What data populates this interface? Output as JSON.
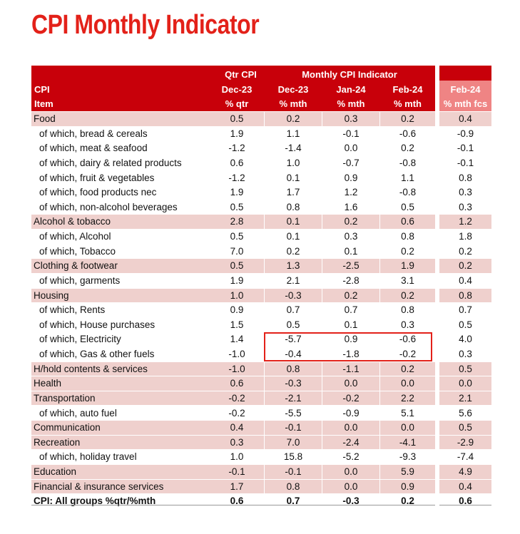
{
  "title": "CPI Monthly Indicator",
  "header": {
    "qtr_cpi": "Qtr CPI",
    "monthly_cpi_indicator": "Monthly CPI Indicator",
    "cpi": "CPI",
    "item": "Item",
    "col_dec23_qtr": "Dec-23",
    "col_qtr_unit": "% qtr",
    "col_dec23": "Dec-23",
    "col_jan24": "Jan-24",
    "col_feb24": "Feb-24",
    "col_mth_unit": "% mth",
    "col_feb24_fcs": "Feb-24",
    "col_fcs_unit": "% mth fcs"
  },
  "chart_data": {
    "type": "table",
    "title": "CPI Monthly Indicator",
    "columns": [
      "Qtr CPI Dec-23 % qtr",
      "Dec-23 % mth",
      "Jan-24 % mth",
      "Feb-24 % mth",
      "Feb-24 % mth fcs"
    ],
    "rows": [
      {
        "label": "Food",
        "values": [
          "0.5",
          "0.2",
          "0.3",
          "0.2",
          "0.4"
        ]
      },
      {
        "label": "of which, bread & cereals",
        "values": [
          "1.9",
          "1.1",
          "-0.1",
          "-0.6",
          "-0.9"
        ]
      },
      {
        "label": "of which, meat & seafood",
        "values": [
          "-1.2",
          "-1.4",
          "0.0",
          "0.2",
          "-0.1"
        ]
      },
      {
        "label": "of which, dairy & related products",
        "values": [
          "0.6",
          "1.0",
          "-0.7",
          "-0.8",
          "-0.1"
        ]
      },
      {
        "label": "of which, fruit & vegetables",
        "values": [
          "-1.2",
          "0.1",
          "0.9",
          "1.1",
          "0.8"
        ]
      },
      {
        "label": "of which, food products nec",
        "values": [
          "1.9",
          "1.7",
          "1.2",
          "-0.8",
          "0.3"
        ]
      },
      {
        "label": "of which, non-alcohol beverages",
        "values": [
          "0.5",
          "0.8",
          "1.6",
          "0.5",
          "0.3"
        ]
      },
      {
        "label": "Alcohol & tobacco",
        "values": [
          "2.8",
          "0.1",
          "0.2",
          "0.6",
          "1.2"
        ]
      },
      {
        "label": "of which, Alcohol",
        "values": [
          "0.5",
          "0.1",
          "0.3",
          "0.8",
          "1.8"
        ]
      },
      {
        "label": "of which, Tobacco",
        "values": [
          "7.0",
          "0.2",
          "0.1",
          "0.2",
          "0.2"
        ]
      },
      {
        "label": "Clothing & footwear",
        "values": [
          "0.5",
          "1.3",
          "-2.5",
          "1.9",
          "0.2"
        ]
      },
      {
        "label": "of which, garments",
        "values": [
          "1.9",
          "2.1",
          "-2.8",
          "3.1",
          "0.4"
        ]
      },
      {
        "label": "Housing",
        "values": [
          "1.0",
          "-0.3",
          "0.2",
          "0.2",
          "0.8"
        ]
      },
      {
        "label": "of which, Rents",
        "values": [
          "0.9",
          "0.7",
          "0.7",
          "0.8",
          "0.7"
        ]
      },
      {
        "label": "of which, House purchases",
        "values": [
          "1.5",
          "0.5",
          "0.1",
          "0.3",
          "0.5"
        ]
      },
      {
        "label": "of which, Electricity",
        "values": [
          "1.4",
          "-5.7",
          "0.9",
          "-0.6",
          "4.0"
        ]
      },
      {
        "label": "of which, Gas & other fuels",
        "values": [
          "-1.0",
          "-0.4",
          "-1.8",
          "-0.2",
          "0.3"
        ]
      },
      {
        "label": "H/hold contents & services",
        "values": [
          "-1.0",
          "0.8",
          "-1.1",
          "0.2",
          "0.5"
        ]
      },
      {
        "label": "Health",
        "values": [
          "0.6",
          "-0.3",
          "0.0",
          "0.0",
          "0.0"
        ]
      },
      {
        "label": "Transportation",
        "values": [
          "-0.2",
          "-2.1",
          "-0.2",
          "2.2",
          "2.1"
        ]
      },
      {
        "label": "of which, auto fuel",
        "values": [
          "-0.2",
          "-5.5",
          "-0.9",
          "5.1",
          "5.6"
        ]
      },
      {
        "label": "Communication",
        "values": [
          "0.4",
          "-0.1",
          "0.0",
          "0.0",
          "0.5"
        ]
      },
      {
        "label": "Recreation",
        "values": [
          "0.3",
          "7.0",
          "-2.4",
          "-4.1",
          "-2.9"
        ]
      },
      {
        "label": "of which, holiday travel",
        "values": [
          "1.0",
          "15.8",
          "-5.2",
          "-9.3",
          "-7.4"
        ]
      },
      {
        "label": "Education",
        "values": [
          "-0.1",
          "-0.1",
          "0.0",
          "5.9",
          "4.9"
        ]
      },
      {
        "label": "Financial & insurance services",
        "values": [
          "1.7",
          "0.8",
          "0.0",
          "0.9",
          "0.4"
        ]
      },
      {
        "label": "CPI: All groups %qtr/%mth",
        "values": [
          "0.6",
          "0.7",
          "-0.3",
          "0.2",
          "0.6"
        ]
      }
    ]
  }
}
